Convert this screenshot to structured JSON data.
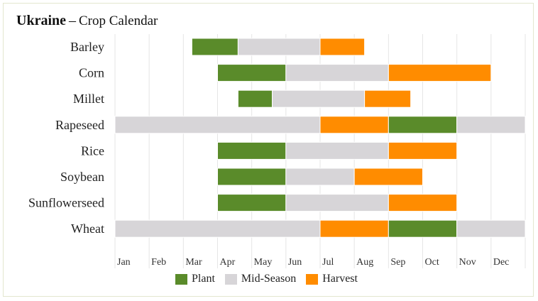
{
  "title": {
    "country": "Ukraine",
    "separator": "–",
    "subtitle": "Crop Calendar"
  },
  "colors": {
    "plant": "#5a8b2a",
    "mid_season": "#d7d5d8",
    "harvest": "#ff8c00",
    "grid": "#e6e6e6"
  },
  "legend": [
    {
      "key": "plant",
      "label": "Plant"
    },
    {
      "key": "mid_season",
      "label": "Mid-Season"
    },
    {
      "key": "harvest",
      "label": "Harvest"
    }
  ],
  "chart_data": {
    "type": "gantt",
    "title": "Ukraine – Crop Calendar",
    "x_unit": "month (1 = start of Jan, 13 = end of Dec)",
    "xlim": [
      1,
      13
    ],
    "months": [
      "Jan",
      "Feb",
      "Mar",
      "Apr",
      "May",
      "Jun",
      "Jul",
      "Aug",
      "Sep",
      "Oct",
      "Nov",
      "Dec"
    ],
    "crops": [
      {
        "name": "Barley",
        "segments": [
          {
            "phase": "plant",
            "start": 3.25,
            "end": 4.6
          },
          {
            "phase": "mid_season",
            "start": 4.6,
            "end": 7.0
          },
          {
            "phase": "harvest",
            "start": 7.0,
            "end": 8.3
          }
        ]
      },
      {
        "name": "Corn",
        "segments": [
          {
            "phase": "plant",
            "start": 4.0,
            "end": 6.0
          },
          {
            "phase": "mid_season",
            "start": 6.0,
            "end": 9.0
          },
          {
            "phase": "harvest",
            "start": 9.0,
            "end": 12.0
          }
        ]
      },
      {
        "name": "Millet",
        "segments": [
          {
            "phase": "plant",
            "start": 4.6,
            "end": 5.6
          },
          {
            "phase": "mid_season",
            "start": 5.6,
            "end": 8.3
          },
          {
            "phase": "harvest",
            "start": 8.3,
            "end": 9.65
          }
        ]
      },
      {
        "name": "Rapeseed",
        "segments": [
          {
            "phase": "mid_season",
            "start": 1.0,
            "end": 7.0
          },
          {
            "phase": "harvest",
            "start": 7.0,
            "end": 9.0
          },
          {
            "phase": "plant",
            "start": 9.0,
            "end": 11.0
          },
          {
            "phase": "mid_season",
            "start": 11.0,
            "end": 13.0
          }
        ]
      },
      {
        "name": "Rice",
        "segments": [
          {
            "phase": "plant",
            "start": 4.0,
            "end": 6.0
          },
          {
            "phase": "mid_season",
            "start": 6.0,
            "end": 9.0
          },
          {
            "phase": "harvest",
            "start": 9.0,
            "end": 11.0
          }
        ]
      },
      {
        "name": "Soybean",
        "segments": [
          {
            "phase": "plant",
            "start": 4.0,
            "end": 6.0
          },
          {
            "phase": "mid_season",
            "start": 6.0,
            "end": 8.0
          },
          {
            "phase": "harvest",
            "start": 8.0,
            "end": 10.0
          }
        ]
      },
      {
        "name": "Sunflowerseed",
        "segments": [
          {
            "phase": "plant",
            "start": 4.0,
            "end": 6.0
          },
          {
            "phase": "mid_season",
            "start": 6.0,
            "end": 9.0
          },
          {
            "phase": "harvest",
            "start": 9.0,
            "end": 11.0
          }
        ]
      },
      {
        "name": "Wheat",
        "segments": [
          {
            "phase": "mid_season",
            "start": 1.0,
            "end": 7.0
          },
          {
            "phase": "harvest",
            "start": 7.0,
            "end": 9.0
          },
          {
            "phase": "plant",
            "start": 9.0,
            "end": 11.0
          },
          {
            "phase": "mid_season",
            "start": 11.0,
            "end": 13.0
          }
        ]
      }
    ]
  }
}
